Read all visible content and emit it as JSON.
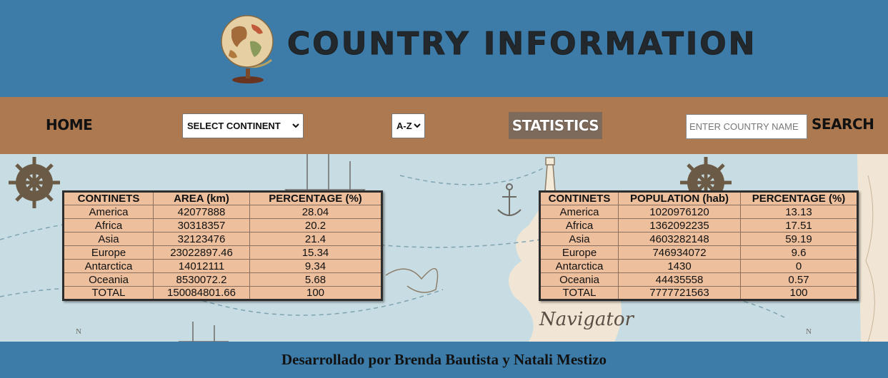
{
  "header": {
    "title": "COUNTRY INFORMATION"
  },
  "nav": {
    "home": "HOME",
    "continent_select": "SELECT CONTINENT",
    "order_select": "A-Z",
    "statistics": "STATISTICS",
    "search_placeholder": "ENTER COUNTRY NAME",
    "search": "SEARCH"
  },
  "area_table": {
    "headers": [
      "CONTINETS",
      "AREA (km)",
      "PERCENTAGE (%)"
    ],
    "rows": [
      [
        "America",
        "42077888",
        "28.04"
      ],
      [
        "Africa",
        "30318357",
        "20.2"
      ],
      [
        "Asia",
        "32123476",
        "21.4"
      ],
      [
        "Europe",
        "23022897.46",
        "15.34"
      ],
      [
        "Antarctica",
        "14012111",
        "9.34"
      ],
      [
        "Oceania",
        "8530072.2",
        "5.68"
      ],
      [
        "TOTAL",
        "150084801.66",
        "100"
      ]
    ]
  },
  "population_table": {
    "headers": [
      "CONTINETS",
      "POPULATION (hab)",
      "PERCENTAGE (%)"
    ],
    "rows": [
      [
        "America",
        "1020976120",
        "13.13"
      ],
      [
        "Africa",
        "1362092235",
        "17.51"
      ],
      [
        "Asia",
        "4603282148",
        "59.19"
      ],
      [
        "Europe",
        "746934072",
        "9.6"
      ],
      [
        "Antarctica",
        "1430",
        "0"
      ],
      [
        "Oceania",
        "44435558",
        "0.57"
      ],
      [
        "TOTAL",
        "7777721563",
        "100"
      ]
    ]
  },
  "footer": {
    "credit": "Desarrollado por Brenda Bautista y Natali Mestizo"
  },
  "map_labels": {
    "navigator": "Navigator"
  },
  "colors": {
    "header_bg": "#3d7ca8",
    "nav_bg": "#ad7950",
    "table_bg": "#edbf9c",
    "statistics_bg": "#7d6a5a"
  }
}
